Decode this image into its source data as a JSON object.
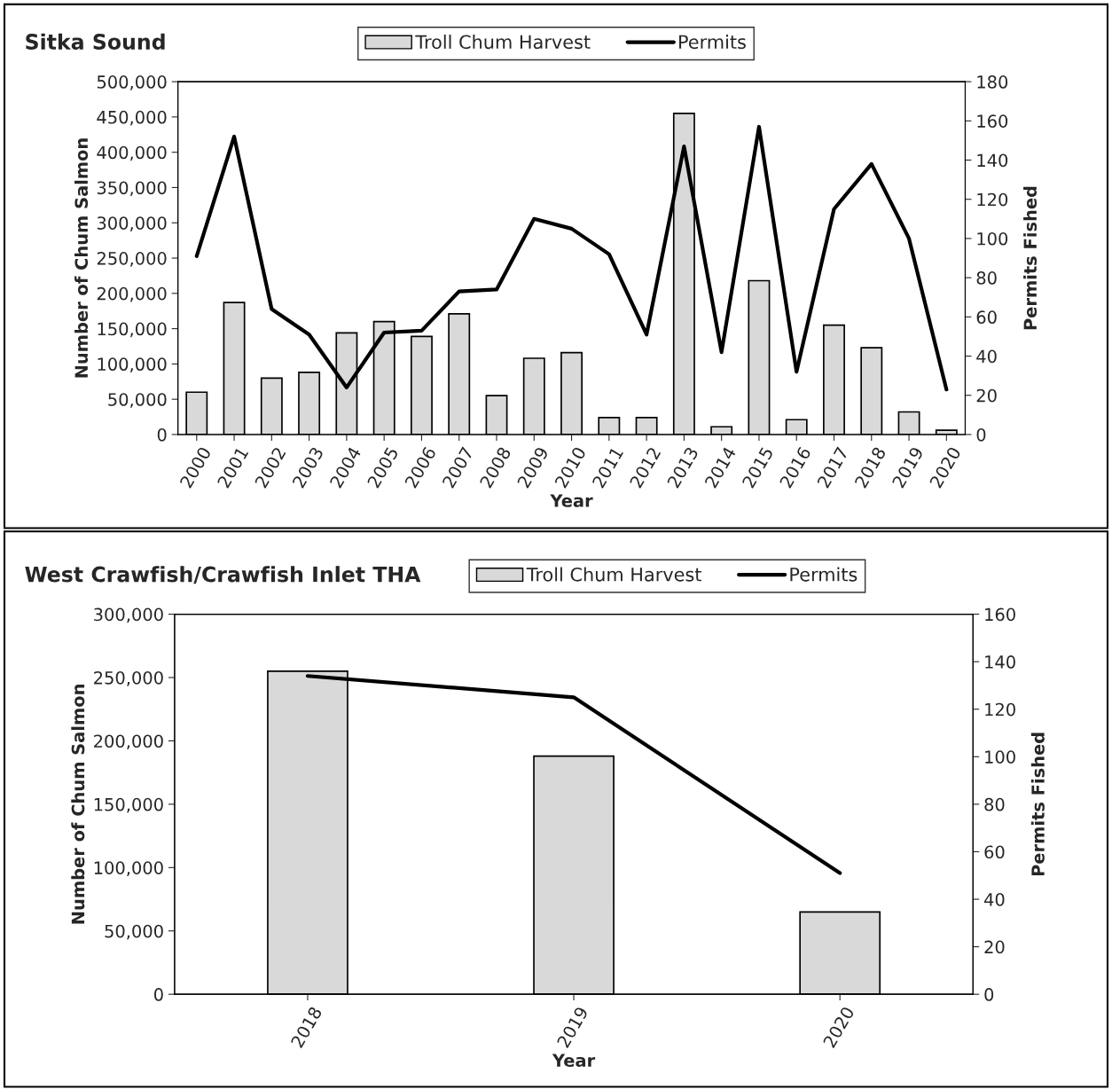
{
  "chart_data": [
    {
      "type": "bar",
      "title": "Sitka Sound",
      "xlabel": "Year",
      "ylabel": "Number of Chum Salmon",
      "y2label": "Permits Fished",
      "legend": "top",
      "categories": [
        "2000",
        "2001",
        "2002",
        "2003",
        "2004",
        "2005",
        "2006",
        "2007",
        "2008",
        "2009",
        "2010",
        "2011",
        "2012",
        "2013",
        "2014",
        "2015",
        "2016",
        "2017",
        "2018",
        "2019",
        "2020"
      ],
      "series": [
        {
          "name": "Troll Chum Harvest",
          "color": "#d9d9d9",
          "values": [
            60000,
            187000,
            80000,
            88000,
            144000,
            160000,
            139000,
            171000,
            55000,
            108000,
            116000,
            24000,
            24000,
            455000,
            11000,
            218000,
            21000,
            155000,
            123000,
            32000,
            6000
          ]
        },
        {
          "name": "Permits",
          "type": "line",
          "axis": "y2",
          "color": "#000000",
          "values": [
            91,
            152,
            64,
            51,
            24,
            52,
            53,
            73,
            74,
            110,
            105,
            92,
            51,
            147,
            42,
            157,
            32,
            115,
            138,
            100,
            23
          ]
        }
      ],
      "ylim": [
        0,
        500000
      ],
      "yticks": [
        0,
        {
          "value": 50000,
          "label": "50,000"
        },
        {
          "value": 100000,
          "label": "100,000"
        },
        {
          "value": 150000,
          "label": "150,000"
        },
        {
          "value": 200000,
          "label": "200,000"
        },
        {
          "value": 250000,
          "label": "250,000"
        },
        {
          "value": 300000,
          "label": "300,000"
        },
        {
          "value": 350000,
          "label": "350,000"
        },
        {
          "value": 400000,
          "label": "400,000"
        },
        {
          "value": 450000,
          "label": "450,000"
        },
        {
          "value": 500000,
          "label": "500,000"
        }
      ],
      "y2lim": [
        0,
        180
      ],
      "y2ticks": [
        0,
        20,
        40,
        60,
        80,
        100,
        120,
        140,
        160,
        180
      ]
    },
    {
      "type": "bar",
      "title": "West Crawfish/Crawfish Inlet THA",
      "xlabel": "Year",
      "ylabel": "Number of Chum Salmon",
      "y2label": "Permits Fished",
      "legend": "top",
      "categories": [
        "2018",
        "2019",
        "2020"
      ],
      "series": [
        {
          "name": "Troll Chum Harvest",
          "color": "#d9d9d9",
          "values": [
            255000,
            188000,
            65000
          ]
        },
        {
          "name": "Permits",
          "type": "line",
          "axis": "y2",
          "color": "#000000",
          "values": [
            134,
            125,
            51
          ]
        }
      ],
      "ylim": [
        0,
        300000
      ],
      "yticks": [
        0,
        {
          "value": 50000,
          "label": "50,000"
        },
        {
          "value": 100000,
          "label": "100,000"
        },
        {
          "value": 150000,
          "label": "150,000"
        },
        {
          "value": 200000,
          "label": "200,000"
        },
        {
          "value": 250000,
          "label": "250,000"
        },
        {
          "value": 300000,
          "label": "300,000"
        }
      ],
      "y2lim": [
        0,
        160
      ],
      "y2ticks": [
        0,
        20,
        40,
        60,
        80,
        100,
        120,
        140,
        160
      ]
    }
  ]
}
